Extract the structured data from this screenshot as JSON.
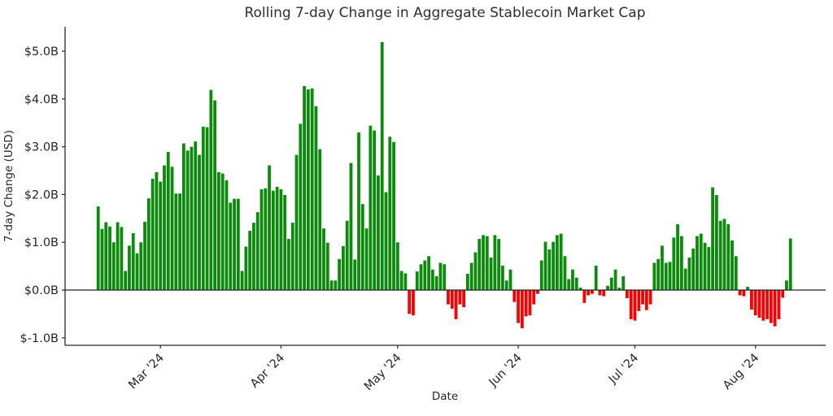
{
  "figure": {
    "background_color": "#ffffff",
    "text_color": "#262626",
    "spine_color": "#262626"
  },
  "chart_data": {
    "type": "bar",
    "title": "Rolling 7-day Change in Aggregate Stablecoin Market Cap",
    "xlabel": "Date",
    "ylabel": "7-day Change (USD)",
    "unit": "USD billions",
    "frequency": "daily",
    "start_date": "2024-02-14",
    "end_date": "2024-08-10",
    "grid": false,
    "positive_color": "#0b8a0b",
    "negative_color": "#f80000",
    "zero_line_color": "#222222",
    "ylim": [
      -1.15,
      5.5
    ],
    "y_ticks": [
      {
        "value": 5,
        "label": "$5.0B"
      },
      {
        "value": 4,
        "label": "$4.0B"
      },
      {
        "value": 3,
        "label": "$3.0B"
      },
      {
        "value": 2,
        "label": "$2.0B"
      },
      {
        "value": 1,
        "label": "$1.0B"
      },
      {
        "value": 0,
        "label": "$0.0B"
      },
      {
        "value": -1,
        "label": "$-1.0B"
      }
    ],
    "x_ticks": [
      {
        "day_offset": 16,
        "label": "Mar '24"
      },
      {
        "day_offset": 47,
        "label": "Apr '24"
      },
      {
        "day_offset": 77,
        "label": "May '24"
      },
      {
        "day_offset": 108,
        "label": "Jun '24"
      },
      {
        "day_offset": 138,
        "label": "Jul '24"
      },
      {
        "day_offset": 169,
        "label": "Aug '24"
      }
    ],
    "values": [
      1.75,
      1.28,
      1.42,
      1.33,
      1.0,
      1.42,
      1.32,
      0.4,
      0.93,
      1.19,
      0.77,
      1.0,
      1.43,
      1.92,
      2.33,
      2.47,
      2.27,
      2.61,
      2.89,
      2.58,
      2.02,
      2.02,
      3.07,
      2.92,
      3.0,
      3.11,
      2.83,
      3.42,
      3.41,
      4.19,
      3.97,
      2.47,
      2.44,
      2.3,
      1.83,
      1.91,
      1.91,
      0.4,
      0.91,
      1.24,
      1.41,
      1.63,
      2.11,
      2.13,
      2.61,
      2.08,
      2.16,
      2.11,
      1.99,
      1.07,
      1.41,
      2.83,
      3.48,
      4.27,
      4.2,
      4.22,
      3.85,
      2.95,
      1.29,
      0.99,
      0.2,
      0.2,
      0.65,
      0.92,
      1.45,
      2.66,
      0.64,
      3.3,
      1.8,
      1.29,
      3.44,
      3.34,
      2.4,
      5.19,
      2.05,
      3.21,
      3.1,
      1.0,
      0.4,
      0.35,
      -0.5,
      -0.53,
      0.39,
      0.54,
      0.62,
      0.71,
      0.43,
      0.29,
      0.57,
      0.54,
      -0.3,
      -0.39,
      -0.61,
      -0.3,
      -0.36,
      0.34,
      0.57,
      0.79,
      1.07,
      1.15,
      1.13,
      0.68,
      1.15,
      1.07,
      0.51,
      0.2,
      0.43,
      -0.25,
      -0.69,
      -0.8,
      -0.55,
      -0.53,
      -0.3,
      -0.08,
      0.62,
      1.01,
      0.85,
      1.01,
      1.15,
      1.18,
      0.71,
      0.23,
      0.43,
      0.26,
      0.05,
      -0.27,
      -0.11,
      -0.08,
      0.51,
      -0.11,
      -0.13,
      0.09,
      0.26,
      0.43,
      0.05,
      0.29,
      -0.17,
      -0.61,
      -0.64,
      -0.44,
      -0.3,
      -0.42,
      -0.3,
      0.57,
      0.65,
      0.93,
      0.57,
      0.59,
      1.1,
      1.38,
      1.13,
      0.45,
      0.68,
      0.87,
      1.13,
      1.18,
      0.99,
      0.9,
      2.15,
      1.99,
      1.45,
      1.49,
      1.38,
      1.04,
      0.71,
      -0.11,
      -0.13,
      0.07,
      -0.41,
      -0.53,
      -0.58,
      -0.64,
      -0.61,
      -0.69,
      -0.76,
      -0.61,
      -0.16,
      0.2,
      1.08
    ]
  }
}
